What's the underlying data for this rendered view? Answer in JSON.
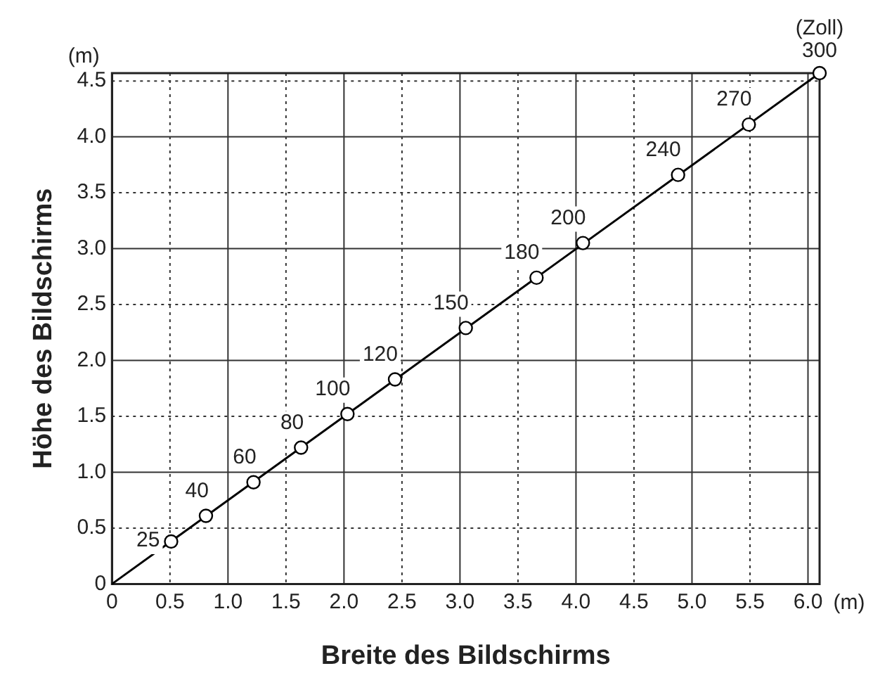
{
  "chart_data": {
    "type": "scatter",
    "xlabel": "Breite des Bildschirms",
    "ylabel": "Höhe des Bildschirms",
    "x": [
      0.51,
      0.81,
      1.22,
      1.63,
      2.03,
      2.44,
      3.05,
      3.66,
      4.06,
      4.88,
      5.49,
      6.1
    ],
    "series": [
      {
        "type": "line",
        "color": "#000000",
        "x": [
          0,
          6.1
        ],
        "values": [
          0,
          4.57
        ],
        "marker": "none"
      },
      {
        "type": "scatter",
        "color": "#000000",
        "marker": "circle",
        "values": [
          0.38,
          0.61,
          0.91,
          1.22,
          1.52,
          1.83,
          2.29,
          2.74,
          3.05,
          3.66,
          4.11,
          4.57
        ]
      }
    ],
    "xlim": [
      0,
      6.1
    ],
    "ylim": [
      0,
      4.57
    ],
    "xticks": [
      0,
      0.5,
      {
        "value": 1,
        "label": "1.0"
      },
      1.5,
      {
        "value": 2,
        "label": "2.0"
      },
      2.5,
      {
        "value": 3,
        "label": "3.0"
      },
      3.5,
      {
        "value": 4,
        "label": "4.0"
      },
      4.5,
      {
        "value": 5,
        "label": "5.0"
      },
      5.5,
      {
        "value": 6,
        "label": "6.0"
      }
    ],
    "yticks": [
      0,
      0.5,
      {
        "value": 1,
        "label": "1.0"
      },
      1.5,
      {
        "value": 2,
        "label": "2.0"
      },
      2.5,
      {
        "value": 3,
        "label": "3.0"
      },
      3.5,
      {
        "value": 4,
        "label": "4.0"
      },
      4.5
    ],
    "grid": true,
    "legend": false,
    "annotations": [
      "(m)",
      "(m)",
      "(Zoll)",
      {
        "text": "25",
        "x": 0.51,
        "y": 0.38
      },
      {
        "text": "40",
        "x": 0.81,
        "y": 0.61
      },
      {
        "text": "60",
        "x": 1.22,
        "y": 0.91
      },
      {
        "text": "80",
        "x": 1.63,
        "y": 1.22
      },
      {
        "text": "100",
        "x": 2.03,
        "y": 1.52
      },
      {
        "text": "120",
        "x": 2.44,
        "y": 1.83
      },
      {
        "text": "150",
        "x": 3.05,
        "y": 2.29
      },
      {
        "text": "180",
        "x": 3.66,
        "y": 2.74
      },
      {
        "text": "200",
        "x": 4.06,
        "y": 3.05
      },
      {
        "text": "240",
        "x": 4.88,
        "y": 3.66
      },
      {
        "text": "270",
        "x": 5.49,
        "y": 4.11
      },
      {
        "text": "300",
        "x": 6.1,
        "y": 4.57
      }
    ]
  }
}
